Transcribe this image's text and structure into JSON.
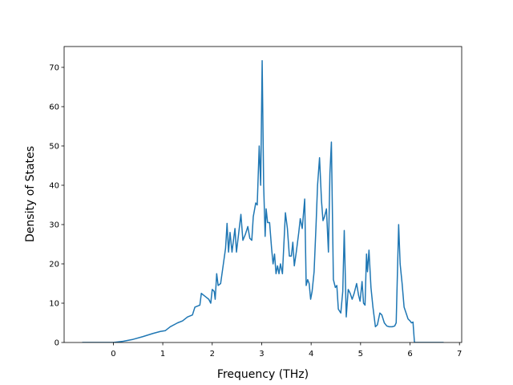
{
  "chart_data": {
    "type": "line",
    "xlabel": "Frequency (THz)",
    "ylabel": "Density of States",
    "color": "#1f77b4",
    "x": [
      -0.63,
      0,
      0.2,
      0.4,
      0.6,
      0.8,
      0.95,
      1.05,
      1.15,
      1.3,
      1.4,
      1.5,
      1.6,
      1.65,
      1.75,
      1.78,
      1.85,
      1.93,
      1.97,
      2.0,
      2.04,
      2.06,
      2.09,
      2.12,
      2.17,
      2.22,
      2.27,
      2.3,
      2.33,
      2.36,
      2.4,
      2.46,
      2.49,
      2.58,
      2.62,
      2.67,
      2.72,
      2.76,
      2.8,
      2.83,
      2.88,
      2.91,
      2.95,
      2.98,
      3.01,
      3.04,
      3.07,
      3.09,
      3.12,
      3.16,
      3.2,
      3.23,
      3.26,
      3.29,
      3.32,
      3.35,
      3.38,
      3.42,
      3.48,
      3.52,
      3.56,
      3.6,
      3.63,
      3.66,
      3.7,
      3.75,
      3.78,
      3.82,
      3.87,
      3.9,
      3.93,
      3.96,
      3.99,
      4.02,
      4.06,
      4.1,
      4.13,
      4.17,
      4.21,
      4.24,
      4.27,
      4.31,
      4.35,
      4.38,
      4.41,
      4.45,
      4.49,
      4.52,
      4.55,
      4.6,
      4.64,
      4.67,
      4.71,
      4.75,
      4.79,
      4.83,
      4.87,
      4.92,
      4.96,
      4.99,
      5.03,
      5.06,
      5.09,
      5.12,
      5.14,
      5.17,
      5.21,
      5.25,
      5.3,
      5.34,
      5.39,
      5.43,
      5.48,
      5.53,
      5.58,
      5.64,
      5.69,
      5.72,
      5.77,
      5.8,
      5.84,
      5.88,
      5.92,
      5.96,
      6.0,
      6.03,
      6.06,
      6.09,
      6.68
    ],
    "values": [
      0,
      0,
      0.3,
      0.8,
      1.5,
      2.3,
      2.8,
      3.0,
      4.0,
      5.0,
      5.5,
      6.5,
      7.0,
      9.0,
      9.5,
      12.5,
      11.8,
      11.0,
      10.0,
      13.5,
      13.0,
      11.0,
      17.5,
      14.5,
      15.0,
      19.5,
      24.0,
      30.3,
      23.0,
      28.0,
      23.0,
      29.0,
      23.0,
      32.6,
      26.0,
      27.5,
      29.5,
      26.5,
      26.0,
      32.0,
      35.5,
      35.0,
      50.0,
      40.0,
      71.7,
      40.0,
      27.0,
      34.0,
      30.5,
      30.5,
      24.0,
      20.0,
      22.5,
      17.5,
      19.5,
      17.5,
      20.0,
      17.5,
      33.0,
      29.0,
      22.0,
      22.0,
      25.5,
      19.5,
      23.0,
      28.0,
      31.5,
      29.0,
      36.5,
      14.5,
      16.0,
      15.0,
      11.0,
      13.0,
      18.0,
      30.0,
      40.0,
      47.0,
      36.0,
      31.0,
      32.0,
      34.0,
      23.0,
      43.0,
      51.0,
      16.0,
      14.0,
      14.5,
      8.5,
      7.5,
      13.0,
      28.5,
      6.5,
      13.5,
      12.5,
      11.0,
      12.5,
      15.0,
      12.0,
      10.5,
      15.5,
      10.0,
      9.5,
      22.5,
      18.0,
      23.5,
      14.0,
      9.0,
      4.0,
      4.5,
      7.5,
      7.0,
      5.0,
      4.2,
      4.0,
      4.0,
      4.2,
      5.0,
      30.0,
      20.0,
      15.0,
      9.0,
      7.5,
      6.0,
      5.5,
      5.0,
      5.2,
      0,
      0
    ],
    "xlim": [
      -0.995,
      7.045
    ],
    "xticks": [
      0,
      1,
      2,
      3,
      4,
      5,
      6,
      7
    ],
    "ylim": [
      0,
      75.3
    ],
    "yticks": [
      0,
      10,
      20,
      30,
      40,
      50,
      60,
      70
    ]
  }
}
